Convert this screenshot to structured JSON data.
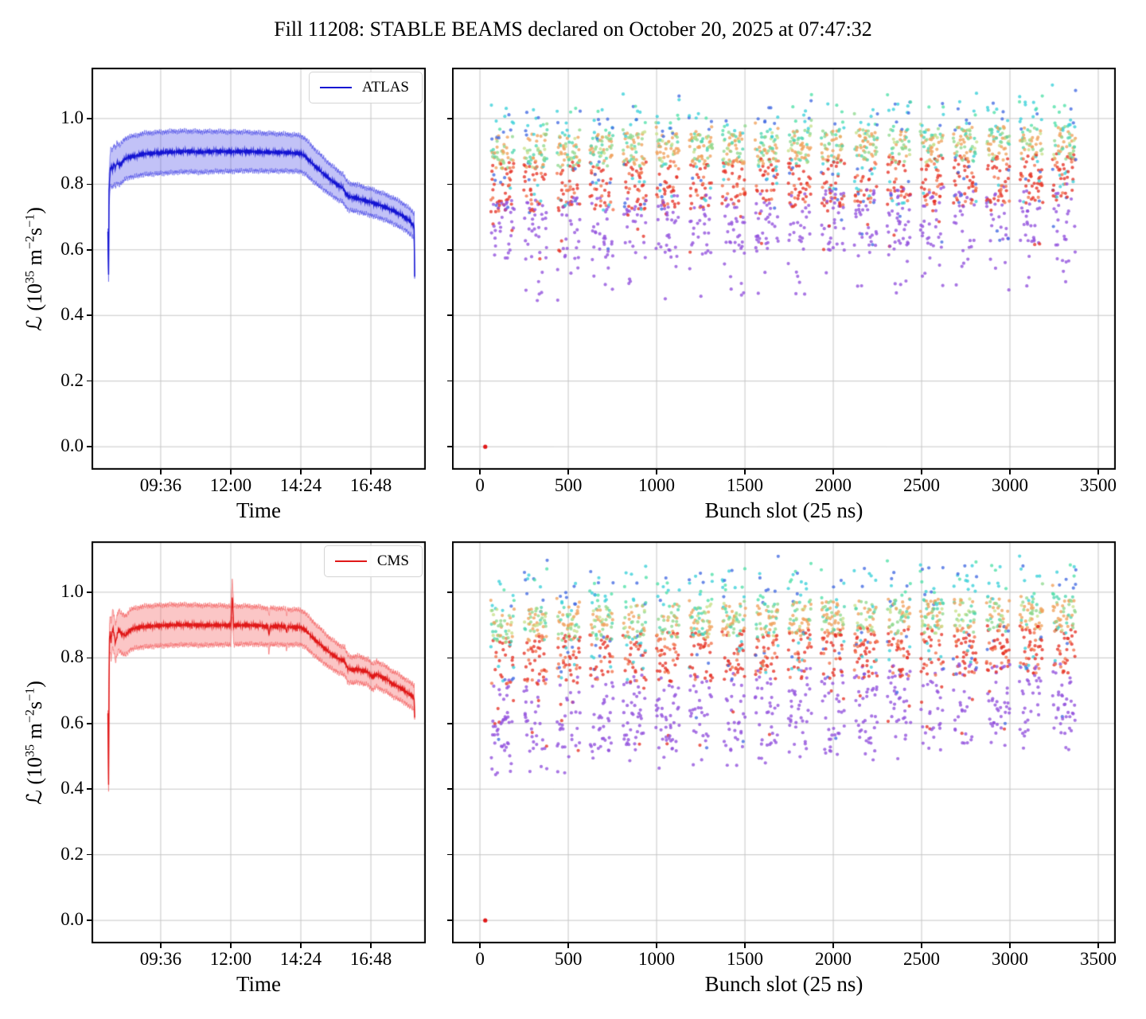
{
  "title": "Fill 11208: STABLE BEAMS declared on October 20, 2025 at 07:47:32",
  "chart_data": {
    "shared_yaxis": {
      "ylabel": "ℒ (10^{35} m^{−2}s^{−1})",
      "ylim": [
        -0.07,
        1.155
      ],
      "yticks": [
        {
          "v": 0.0,
          "label": "0.0"
        },
        {
          "v": 0.2,
          "label": "0.2"
        },
        {
          "v": 0.4,
          "label": "0.4"
        },
        {
          "v": 0.6,
          "label": "0.6"
        },
        {
          "v": 0.8,
          "label": "0.8"
        },
        {
          "v": 1.0,
          "label": "1.0"
        }
      ],
      "grid": true,
      "grid_color": "#c6c6c6"
    },
    "panels": [
      {
        "id": "atlas-time",
        "type": "area-line",
        "xlabel": "Time",
        "xlim": [
          7.23,
          18.68
        ],
        "xticks": [
          {
            "v": 9.6,
            "label": "09:36"
          },
          {
            "v": 12.0,
            "label": "12:00"
          },
          {
            "v": 14.4,
            "label": "14:24"
          },
          {
            "v": 16.8,
            "label": "16:48"
          }
        ],
        "legend": {
          "label": "ATLAS",
          "position": "upper-right"
        },
        "line_color": "#1414d2",
        "band_fill": "rgba(70,70,230,0.33)",
        "band_edge": "rgba(70,70,230,0.55)",
        "seed": 101,
        "series": {
          "name": "ATLAS",
          "note": "points are [time_hours, mean_luminosity, band_halfwidth]",
          "points": [
            [
              7.79,
              0.655,
              0.015
            ],
            [
              7.8,
              0.6,
              0.02
            ],
            [
              7.815,
              0.52,
              0.02
            ],
            [
              7.83,
              0.78,
              0.045
            ],
            [
              7.85,
              0.815,
              0.05
            ],
            [
              7.87,
              0.84,
              0.055
            ],
            [
              7.9,
              0.855,
              0.058
            ],
            [
              7.95,
              0.845,
              0.058
            ],
            [
              8.0,
              0.862,
              0.06
            ],
            [
              8.05,
              0.85,
              0.06
            ],
            [
              8.1,
              0.865,
              0.06
            ],
            [
              8.2,
              0.858,
              0.06
            ],
            [
              8.35,
              0.875,
              0.062
            ],
            [
              8.5,
              0.882,
              0.062
            ],
            [
              8.7,
              0.885,
              0.062
            ],
            [
              9.0,
              0.892,
              0.063
            ],
            [
              9.5,
              0.895,
              0.063
            ],
            [
              10.0,
              0.898,
              0.063
            ],
            [
              10.5,
              0.9,
              0.062
            ],
            [
              11.0,
              0.898,
              0.062
            ],
            [
              11.5,
              0.9,
              0.061
            ],
            [
              12.0,
              0.899,
              0.06
            ],
            [
              12.5,
              0.9,
              0.059
            ],
            [
              13.0,
              0.898,
              0.058
            ],
            [
              13.5,
              0.897,
              0.057
            ],
            [
              14.0,
              0.896,
              0.056
            ],
            [
              14.4,
              0.893,
              0.055
            ],
            [
              14.55,
              0.885,
              0.054
            ],
            [
              14.8,
              0.862,
              0.052
            ],
            [
              15.1,
              0.838,
              0.049
            ],
            [
              15.4,
              0.815,
              0.046
            ],
            [
              15.7,
              0.795,
              0.044
            ],
            [
              15.85,
              0.788,
              0.043
            ],
            [
              15.95,
              0.77,
              0.042
            ],
            [
              16.05,
              0.762,
              0.041
            ],
            [
              16.3,
              0.758,
              0.041
            ],
            [
              16.6,
              0.75,
              0.04
            ],
            [
              16.9,
              0.742,
              0.04
            ],
            [
              17.2,
              0.733,
              0.039
            ],
            [
              17.5,
              0.722,
              0.039
            ],
            [
              17.8,
              0.708,
              0.039
            ],
            [
              18.0,
              0.697,
              0.038
            ],
            [
              18.15,
              0.685,
              0.038
            ],
            [
              18.28,
              0.672,
              0.038
            ],
            [
              18.3,
              0.52,
              0.015
            ]
          ]
        }
      },
      {
        "id": "atlas-bunch",
        "type": "scatter",
        "xlabel": "Bunch slot (25 ns)",
        "xlim": [
          -158,
          3599
        ],
        "xticks": [
          {
            "v": 0,
            "label": "0"
          },
          {
            "v": 500,
            "label": "500"
          },
          {
            "v": 1000,
            "label": "1000"
          },
          {
            "v": 1500,
            "label": "1500"
          },
          {
            "v": 2000,
            "label": "2000"
          },
          {
            "v": 2500,
            "label": "2500"
          },
          {
            "v": 3000,
            "label": "3000"
          },
          {
            "v": 3500,
            "label": "3500"
          }
        ],
        "seed": 20251020,
        "trains": {
          "count": 18,
          "first_bunch": 62,
          "bunch_len": 132,
          "period": 187
        },
        "point_radius": 2.1,
        "point_alpha": 0.78,
        "trend": 0.03,
        "trend_low": 0.055,
        "head_boost": 0.05,
        "zero_point": {
          "x": 30,
          "y": 0.0,
          "color": "#e01818"
        },
        "populations": [
          {
            "name": "peak",
            "p": 0.07,
            "y": [
              0.93,
              1.03
            ],
            "colors": [
              [
                "#38cfd8",
                0.45
              ],
              [
                "#4169e1",
                0.3
              ],
              [
                "#4fe0a8",
                0.25
              ]
            ]
          },
          {
            "name": "high",
            "p": 0.36,
            "y": [
              0.845,
              0.95
            ],
            "colors": [
              [
                "#f0a25c",
                0.45
              ],
              [
                "#8fd98e",
                0.27
              ],
              [
                "#4fd6b0",
                0.18
              ],
              [
                "#c8e08a",
                0.1
              ]
            ]
          },
          {
            "name": "mid",
            "p": 0.3,
            "y": [
              0.715,
              0.865
            ],
            "colors": [
              [
                "#e63226",
                0.6
              ],
              [
                "#f2724c",
                0.25
              ],
              [
                "#4169e1",
                0.07
              ],
              [
                "#38cfd8",
                0.08
              ]
            ]
          },
          {
            "name": "low",
            "p": 0.22,
            "y": [
              0.565,
              0.75
            ],
            "colors": [
              [
                "#9150dc",
                0.9
              ],
              [
                "#e63226",
                0.07
              ],
              [
                "#4169e1",
                0.03
              ]
            ]
          },
          {
            "name": "floor",
            "p": 0.05,
            "y": [
              0.43,
              0.6
            ],
            "colors": [
              [
                "#9150dc",
                1.0
              ]
            ]
          }
        ]
      },
      {
        "id": "cms-time",
        "type": "area-line",
        "xlabel": "Time",
        "xlim": [
          7.23,
          18.68
        ],
        "xticks": [
          {
            "v": 9.6,
            "label": "09:36"
          },
          {
            "v": 12.0,
            "label": "12:00"
          },
          {
            "v": 14.4,
            "label": "14:24"
          },
          {
            "v": 16.8,
            "label": "16:48"
          }
        ],
        "legend": {
          "label": "CMS",
          "position": "upper-right"
        },
        "line_color": "#e01818",
        "band_fill": "rgba(244,96,96,0.36)",
        "band_edge": "rgba(244,96,96,0.6)",
        "seed": 202,
        "series": {
          "name": "CMS",
          "note": "points are [time_hours, mean_luminosity, band_halfwidth]",
          "points": [
            [
              7.79,
              0.63,
              0.015
            ],
            [
              7.8,
              0.56,
              0.02
            ],
            [
              7.815,
              0.41,
              0.02
            ],
            [
              7.83,
              0.72,
              0.04
            ],
            [
              7.845,
              0.86,
              0.05
            ],
            [
              7.87,
              0.875,
              0.055
            ],
            [
              7.9,
              0.85,
              0.056
            ],
            [
              7.93,
              0.875,
              0.057
            ],
            [
              7.96,
              0.89,
              0.058
            ],
            [
              8.0,
              0.875,
              0.058
            ],
            [
              8.05,
              0.845,
              0.058
            ],
            [
              8.1,
              0.865,
              0.059
            ],
            [
              8.15,
              0.885,
              0.06
            ],
            [
              8.25,
              0.875,
              0.06
            ],
            [
              8.4,
              0.868,
              0.06
            ],
            [
              8.55,
              0.885,
              0.061
            ],
            [
              8.7,
              0.89,
              0.061
            ],
            [
              9.0,
              0.895,
              0.062
            ],
            [
              9.5,
              0.898,
              0.062
            ],
            [
              10.0,
              0.9,
              0.062
            ],
            [
              10.5,
              0.901,
              0.061
            ],
            [
              11.0,
              0.899,
              0.061
            ],
            [
              11.5,
              0.9,
              0.06
            ],
            [
              12.0,
              0.899,
              0.059
            ],
            [
              12.05,
              0.985,
              0.059
            ],
            [
              12.1,
              0.899,
              0.059
            ],
            [
              12.5,
              0.9,
              0.058
            ],
            [
              13.0,
              0.898,
              0.057
            ],
            [
              13.28,
              0.895,
              0.056
            ],
            [
              13.31,
              0.865,
              0.056
            ],
            [
              13.34,
              0.896,
              0.056
            ],
            [
              13.6,
              0.896,
              0.055
            ],
            [
              13.88,
              0.894,
              0.055
            ],
            [
              13.91,
              0.875,
              0.054
            ],
            [
              13.94,
              0.894,
              0.054
            ],
            [
              14.4,
              0.893,
              0.053
            ],
            [
              14.55,
              0.885,
              0.052
            ],
            [
              14.8,
              0.862,
              0.05
            ],
            [
              15.1,
              0.838,
              0.048
            ],
            [
              15.4,
              0.815,
              0.045
            ],
            [
              15.7,
              0.797,
              0.043
            ],
            [
              15.9,
              0.79,
              0.042
            ],
            [
              16.0,
              0.768,
              0.041
            ],
            [
              16.15,
              0.763,
              0.04
            ],
            [
              16.35,
              0.766,
              0.04
            ],
            [
              16.55,
              0.76,
              0.04
            ],
            [
              16.7,
              0.757,
              0.039
            ],
            [
              16.85,
              0.741,
              0.039
            ],
            [
              17.0,
              0.751,
              0.039
            ],
            [
              17.15,
              0.742,
              0.039
            ],
            [
              17.35,
              0.734,
              0.038
            ],
            [
              17.55,
              0.72,
              0.038
            ],
            [
              17.75,
              0.712,
              0.038
            ],
            [
              17.95,
              0.7,
              0.037
            ],
            [
              18.1,
              0.69,
              0.037
            ],
            [
              18.22,
              0.683,
              0.037
            ],
            [
              18.28,
              0.678,
              0.037
            ],
            [
              18.3,
              0.62,
              0.015
            ]
          ]
        }
      },
      {
        "id": "cms-bunch",
        "type": "scatter",
        "xlabel": "Bunch slot (25 ns)",
        "xlim": [
          -158,
          3599
        ],
        "xticks": [
          {
            "v": 0,
            "label": "0"
          },
          {
            "v": 500,
            "label": "500"
          },
          {
            "v": 1000,
            "label": "1000"
          },
          {
            "v": 1500,
            "label": "1500"
          },
          {
            "v": 2000,
            "label": "2000"
          },
          {
            "v": 2500,
            "label": "2500"
          },
          {
            "v": 3000,
            "label": "3000"
          },
          {
            "v": 3500,
            "label": "3500"
          }
        ],
        "seed": 11208,
        "trains": {
          "count": 18,
          "first_bunch": 62,
          "bunch_len": 132,
          "period": 187
        },
        "point_radius": 2.1,
        "point_alpha": 0.78,
        "trend": 0.04,
        "trend_low": 0.07,
        "head_boost": 0.05,
        "zero_point": {
          "x": 30,
          "y": 0.0,
          "color": "#e01818"
        },
        "populations": [
          {
            "name": "peak",
            "p": 0.08,
            "y": [
              0.93,
              1.05
            ],
            "colors": [
              [
                "#38cfd8",
                0.45
              ],
              [
                "#4169e1",
                0.3
              ],
              [
                "#4fe0a8",
                0.25
              ]
            ]
          },
          {
            "name": "high",
            "p": 0.35,
            "y": [
              0.845,
              0.95
            ],
            "colors": [
              [
                "#f0a25c",
                0.45
              ],
              [
                "#8fd98e",
                0.27
              ],
              [
                "#4fd6b0",
                0.18
              ],
              [
                "#c8e08a",
                0.1
              ]
            ]
          },
          {
            "name": "mid",
            "p": 0.3,
            "y": [
              0.715,
              0.865
            ],
            "colors": [
              [
                "#e63226",
                0.6
              ],
              [
                "#f2724c",
                0.25
              ],
              [
                "#4169e1",
                0.07
              ],
              [
                "#38cfd8",
                0.08
              ]
            ]
          },
          {
            "name": "low",
            "p": 0.21,
            "y": [
              0.5,
              0.73
            ],
            "colors": [
              [
                "#9150dc",
                0.9
              ],
              [
                "#e63226",
                0.07
              ],
              [
                "#4169e1",
                0.03
              ]
            ]
          },
          {
            "name": "floor",
            "p": 0.06,
            "y": [
              0.44,
              0.62
            ],
            "colors": [
              [
                "#9150dc",
                1.0
              ]
            ]
          }
        ]
      }
    ]
  }
}
